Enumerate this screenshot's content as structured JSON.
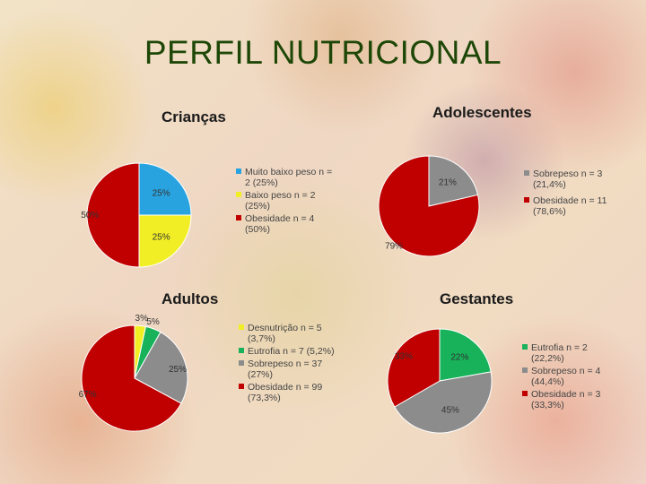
{
  "page": {
    "title": "PERFIL NUTRICIONAL"
  },
  "colors": {
    "blue": "#29a3df",
    "yellow": "#f2ee25",
    "red": "#c00000",
    "gray": "#8c8c8c",
    "green": "#17b25a"
  },
  "chart_data": [
    {
      "type": "pie",
      "title": "Crianças",
      "slices": [
        {
          "label": "Muito baixo peso n = 2 (25%)",
          "value": 25,
          "pct_label": "25%",
          "color": "#29a3df"
        },
        {
          "label": "Baixo peso n = 2 (25%)",
          "value": 25,
          "pct_label": "25%",
          "color": "#f2ee25"
        },
        {
          "label": "Obesidade n = 4 (50%)",
          "value": 50,
          "pct_label": "50%",
          "color": "#c00000"
        }
      ],
      "legend_position": "right"
    },
    {
      "type": "pie",
      "title": "Adolescentes",
      "slices": [
        {
          "label": "Sobrepeso n = 3 (21,4%)",
          "value": 21.4,
          "pct_label": "21%",
          "color": "#8c8c8c"
        },
        {
          "label": "Obesidade n = 11 (78,6%)",
          "value": 78.6,
          "pct_label": "79%",
          "color": "#c00000"
        }
      ],
      "legend_position": "right"
    },
    {
      "type": "pie",
      "title": "Adultos",
      "slices": [
        {
          "label": "Desnutrição n = 5 (3,7%)",
          "value": 3.7,
          "pct_label": "3%",
          "color": "#f2ee25"
        },
        {
          "label": "Eutrofia n = 7 (5,2%)",
          "value": 5.2,
          "pct_label": "5%",
          "color": "#17b25a"
        },
        {
          "label": "Sobrepeso n = 37 (27%)",
          "value": 27,
          "pct_label": "25%",
          "color": "#8c8c8c"
        },
        {
          "label": "Obesidade n = 99 (73,3%)",
          "value": 73.3,
          "pct_label": "67%",
          "color": "#c00000"
        }
      ],
      "legend_position": "right"
    },
    {
      "type": "pie",
      "title": "Gestantes",
      "slices": [
        {
          "label": "Eutrofia n = 2 (22,2%)",
          "value": 22.2,
          "pct_label": "22%",
          "color": "#17b25a"
        },
        {
          "label": "Sobrepeso n = 4 (44,4%)",
          "value": 44.4,
          "pct_label": "45%",
          "color": "#8c8c8c"
        },
        {
          "label": "Obesidade n = 3 (33,3%)",
          "value": 33.3,
          "pct_label": "33%",
          "color": "#c00000"
        }
      ],
      "legend_position": "right"
    }
  ]
}
